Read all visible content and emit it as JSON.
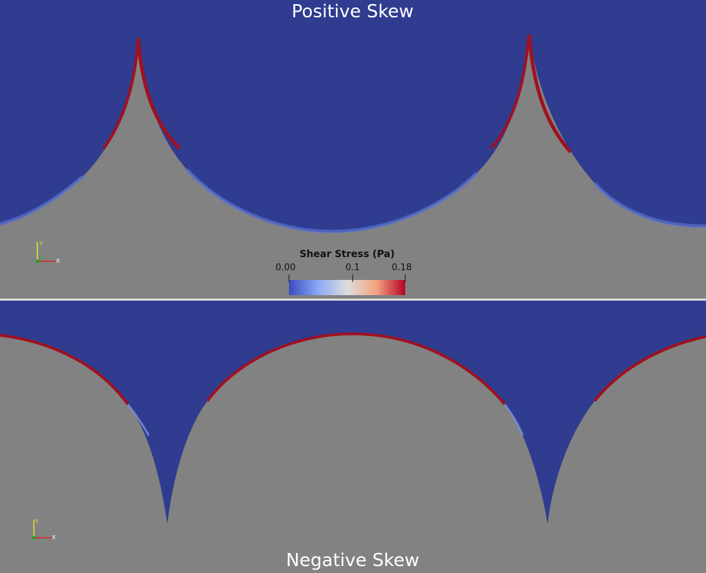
{
  "top_panel": {
    "title": "Positive Skew"
  },
  "bottom_panel": {
    "title": "Negative Skew"
  },
  "colorbar": {
    "title": "Shear Stress (Pa)",
    "ticks": [
      "0.00",
      "0.1",
      "0.18"
    ],
    "colors": {
      "low": "#3b4cc0",
      "mid": "#dddddd",
      "high": "#b40426"
    }
  },
  "orientation_top": {
    "axes": [
      "Y",
      "Z",
      "X"
    ]
  },
  "orientation_bottom": {
    "axes": [
      "Y",
      "X"
    ]
  },
  "colors": {
    "fluid": "#2f3c8f",
    "solid": "#828282",
    "wall_high": "#a01020"
  }
}
